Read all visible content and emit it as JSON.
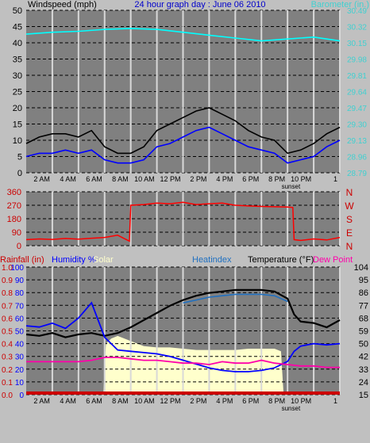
{
  "header": {
    "left_label": "Windspeed (mph)",
    "title": "24 hour graph day : June 06 2010",
    "right_label": "Barometer (in.)"
  },
  "mid": {
    "compass": [
      "N",
      "W",
      "S",
      "E",
      "N"
    ]
  },
  "bottom_header": {
    "rainfall": "Rainfall (in)",
    "humidity": "Humidity %",
    "solar": "Solar",
    "heatindex": "Heatindex",
    "temperature": "Temperature (°F)",
    "dewpoint": "Dew Point"
  },
  "x_axis": {
    "labels": [
      "2 AM",
      "4 AM",
      "6 AM",
      "8 AM",
      "10 AM",
      "12 PM",
      "2 PM",
      "4 PM",
      "6 PM",
      "8 PM",
      "10 PM",
      "1"
    ],
    "label_hours": [
      2,
      4,
      6,
      8,
      10,
      12,
      14,
      16,
      18,
      20,
      22,
      24
    ],
    "sunset_label": "sunset",
    "sunset_hour": 20.5
  },
  "colors": {
    "wind_gust": "#000000",
    "wind_avg": "#0000ff",
    "wind_dir": "#ff0000",
    "barometer": "#00ffff",
    "barometer_label": "#40d0d0",
    "title": "#0000cc",
    "temperature": "#000000",
    "heatindex": "#2070c0",
    "dewpoint": "#ff00aa",
    "humidity": "#0000ff",
    "solar_fill": "#ffffcc",
    "rain": "#cc0000"
  },
  "chart_data": [
    {
      "type": "line",
      "title": "24 hour graph day : June 06 2010",
      "x_range": [
        0,
        24
      ],
      "left_axis": {
        "label": "Windspeed (mph)",
        "ylim": [
          0,
          50
        ],
        "ticks": [
          "0",
          "5",
          "10",
          "15",
          "20",
          "25",
          "30",
          "35",
          "40",
          "45",
          "50"
        ]
      },
      "right_axis": {
        "label": "Barometer (in.)",
        "ylim": [
          28.79,
          30.49
        ],
        "ticks": [
          "28.79",
          "28.96",
          "29.13",
          "29.30",
          "29.47",
          "29.64",
          "29.81",
          "29.98",
          "30.15",
          "30.32",
          "30.49"
        ]
      },
      "series": [
        {
          "name": "Windspeed",
          "axis": "left",
          "x": [
            0,
            1,
            2,
            3,
            4,
            5,
            6,
            7,
            8,
            9,
            10,
            11,
            12,
            13,
            14,
            15,
            16,
            17,
            18,
            19,
            20,
            21,
            22,
            23,
            24
          ],
          "y": [
            5,
            6,
            6,
            7,
            6,
            7,
            4,
            3,
            3,
            4,
            8,
            9,
            11,
            13,
            14,
            12,
            10,
            8,
            7,
            6,
            3,
            4,
            5,
            8,
            10
          ]
        },
        {
          "name": "Wind gust",
          "axis": "left",
          "x": [
            0,
            1,
            2,
            3,
            4,
            5,
            6,
            7,
            8,
            9,
            10,
            11,
            12,
            13,
            14,
            15,
            16,
            17,
            18,
            19,
            20,
            21,
            22,
            23,
            24
          ],
          "y": [
            9,
            11,
            12,
            12,
            11,
            13,
            8,
            6,
            6,
            8,
            13,
            15,
            17,
            19,
            20,
            18,
            16,
            13,
            11,
            10,
            6,
            7,
            9,
            12,
            14
          ]
        },
        {
          "name": "Barometer (in.)",
          "axis": "right",
          "x": [
            0,
            2,
            4,
            6,
            8,
            10,
            12,
            14,
            16,
            18,
            20,
            22,
            24
          ],
          "y": [
            30.24,
            30.26,
            30.27,
            30.29,
            30.3,
            30.29,
            30.26,
            30.23,
            30.2,
            30.17,
            30.19,
            30.21,
            30.17
          ]
        }
      ]
    },
    {
      "type": "line",
      "x_range": [
        0,
        24
      ],
      "ylim": [
        0,
        360
      ],
      "ticks": [
        "0",
        "90",
        "180",
        "270",
        "360"
      ],
      "series": [
        {
          "name": "Wind direction",
          "x": [
            0,
            1,
            2,
            3,
            4,
            5,
            6,
            7,
            7.9,
            8,
            9,
            10,
            11,
            12,
            13,
            14,
            15,
            16,
            17,
            18,
            19,
            20,
            20.4,
            20.5,
            21,
            22,
            23,
            24
          ],
          "y": [
            40,
            45,
            42,
            48,
            44,
            50,
            55,
            70,
            30,
            270,
            275,
            285,
            280,
            290,
            275,
            280,
            285,
            270,
            265,
            262,
            260,
            258,
            255,
            40,
            35,
            45,
            38,
            55
          ]
        }
      ]
    },
    {
      "type": "line",
      "x_range": [
        0,
        24
      ],
      "rain_axis": {
        "label": "Rainfall (in)",
        "ylim": [
          0,
          1.0
        ],
        "ticks": [
          "0.0",
          "0.1",
          "0.2",
          "0.3",
          "0.4",
          "0.5",
          "0.6",
          "0.7",
          "0.8",
          "0.9",
          "1.0"
        ]
      },
      "humidity_axis": {
        "label": "Humidity %",
        "ylim": [
          0,
          100
        ],
        "ticks": [
          "0",
          "10",
          "20",
          "30",
          "40",
          "50",
          "60",
          "70",
          "80",
          "90",
          "100"
        ]
      },
      "temperature_axis": {
        "label": "Temperature (°F)",
        "ylim": [
          15,
          104
        ],
        "ticks": [
          "15",
          "24",
          "33",
          "42",
          "50",
          "59",
          "68",
          "77",
          "86",
          "95",
          "104"
        ]
      },
      "series": [
        {
          "name": "Temperature (°F)",
          "axis": "temperature",
          "x": [
            0,
            1,
            2,
            3,
            4,
            5,
            6,
            7,
            8,
            9,
            10,
            11,
            12,
            13,
            14,
            15,
            16,
            17,
            18,
            19,
            20,
            20.5,
            21,
            22,
            23,
            24
          ],
          "y": [
            57,
            56,
            58,
            55,
            57,
            58,
            56,
            58,
            62,
            67,
            72,
            77,
            81,
            84,
            86,
            87,
            88,
            88,
            88,
            87,
            82,
            71,
            66,
            65,
            62,
            67
          ]
        },
        {
          "name": "Heatindex",
          "axis": "temperature",
          "x": [
            12,
            13,
            14,
            15,
            16,
            17,
            18,
            19,
            20
          ],
          "y": [
            79,
            81,
            83,
            84,
            85,
            85,
            85,
            84,
            80
          ]
        },
        {
          "name": "Humidity %",
          "axis": "humidity",
          "x": [
            0,
            1,
            2,
            3,
            4,
            5,
            6,
            7,
            8,
            9,
            10,
            11,
            12,
            13,
            14,
            15,
            16,
            17,
            18,
            19,
            20,
            20.5,
            21,
            22,
            23,
            24
          ],
          "y": [
            54,
            53,
            56,
            52,
            60,
            72,
            45,
            35,
            34,
            33,
            32,
            30,
            27,
            24,
            21,
            19,
            18,
            18,
            19,
            21,
            26,
            34,
            38,
            40,
            39,
            40
          ]
        },
        {
          "name": "Dew Point",
          "axis": "temperature",
          "x": [
            0,
            1,
            2,
            3,
            4,
            5,
            6,
            7,
            8,
            9,
            10,
            11,
            12,
            13,
            14,
            15,
            16,
            17,
            18,
            19,
            20,
            21,
            22,
            23,
            24
          ],
          "y": [
            38,
            38,
            38,
            38,
            38,
            39,
            41,
            41,
            40,
            39,
            39,
            38,
            37,
            37,
            36,
            38,
            37,
            37,
            39,
            37,
            36,
            35,
            35,
            34,
            34
          ]
        },
        {
          "name": "Solar",
          "x": [
            5.9,
            6.1,
            6.5,
            7,
            8,
            9,
            10,
            11,
            12,
            13,
            14,
            15,
            16,
            17,
            18,
            19,
            19.5,
            19.7
          ],
          "y": [
            0,
            40,
            44,
            46,
            42,
            38,
            37,
            37,
            36,
            35,
            35,
            35,
            35,
            36,
            36,
            36,
            34,
            0
          ]
        },
        {
          "name": "Rainfall (in)",
          "axis": "rain",
          "x": [
            0,
            24
          ],
          "y": [
            0,
            0
          ]
        }
      ]
    }
  ]
}
